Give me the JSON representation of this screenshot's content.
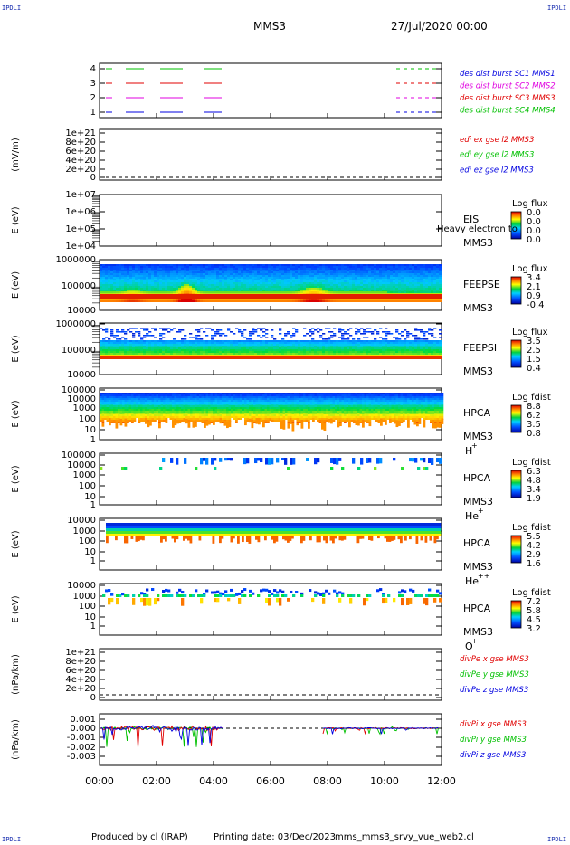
{
  "corners": {
    "tl": "IPDLI",
    "tr": "IPDLI",
    "bl": "IPDLI",
    "br": "IPDLI"
  },
  "header": {
    "mission": "MMS3",
    "date": "27/Jul/2020 00:00"
  },
  "footer": {
    "produced": "Produced by cl (IRAP)",
    "printed": "Printing date: 03/Dec/2023",
    "script": "mms_mms3_srvy_vue_web2.cl"
  },
  "xaxis": {
    "ticks": [
      "00:00",
      "02:00",
      "04:00",
      "06:00",
      "08:00",
      "10:00",
      "12:00"
    ]
  },
  "colors": {
    "blue": "#0000e0",
    "red": "#e00000",
    "green": "#00c000",
    "magenta": "#e000e0"
  },
  "chart_data": [
    {
      "type": "line",
      "id": "burst",
      "yticks": [
        "4",
        "3",
        "2",
        "1"
      ],
      "legend": [
        {
          "text": "des dist burst SC1 MMS1",
          "color": "#0000e0"
        },
        {
          "text": "des dist burst SC2 MMS2",
          "color": "#e000e0"
        },
        {
          "text": "des dist burst SC3 MMS3",
          "color": "#e00000"
        },
        {
          "text": "des dist burst SC4 MMS4",
          "color": "#00c000"
        }
      ]
    },
    {
      "type": "line",
      "id": "edi",
      "ylabel": "(mV/m)",
      "yticks": [
        "1e+21",
        "8e+20",
        "6e+20",
        "4e+20",
        "2e+20",
        "0"
      ],
      "legend": [
        {
          "text": "edi ex gse l2 MMS3",
          "color": "#e00000"
        },
        {
          "text": "edi ey gse l2 MMS3",
          "color": "#00c000"
        },
        {
          "text": "edi ez gse l2 MMS3",
          "color": "#0000e0"
        }
      ]
    },
    {
      "type": "heatmap",
      "id": "eis",
      "ylabel": "E (eV)",
      "yticks": [
        "1e+07",
        "1e+06",
        "1e+05",
        "1e+04"
      ],
      "labels": [
        "EIS",
        "MMS3"
      ],
      "overlay": "Heavy electron to",
      "cb_title": "Log flux",
      "cb_ticks": [
        "0.0",
        "0.0",
        "0.0",
        "0.0"
      ]
    },
    {
      "type": "heatmap",
      "id": "feepse",
      "ylabel": "E (eV)",
      "yticks": [
        "1000000",
        "100000",
        "10000"
      ],
      "labels": [
        "FEEPSE",
        "MMS3"
      ],
      "cb_title": "Log flux",
      "cb_ticks": [
        "3.4",
        "2.1",
        "0.9",
        "-0.4"
      ]
    },
    {
      "type": "heatmap",
      "id": "feepsi",
      "ylabel": "E (eV)",
      "yticks": [
        "1000000",
        "100000",
        "10000"
      ],
      "labels": [
        "FEEPSI",
        "MMS3"
      ],
      "cb_title": "Log flux",
      "cb_ticks": [
        "3.5",
        "2.5",
        "1.5",
        "0.4"
      ]
    },
    {
      "type": "heatmap",
      "id": "hpca_h",
      "ylabel": "E (eV)",
      "yticks": [
        "100000",
        "10000",
        "1000",
        "100",
        "10",
        "1"
      ],
      "labels": [
        "HPCA",
        "MMS3"
      ],
      "species": "H",
      "sup": "+",
      "cb_title": "Log fdist",
      "cb_ticks": [
        "8.8",
        "6.2",
        "3.5",
        "0.8"
      ]
    },
    {
      "type": "heatmap",
      "id": "hpca_he",
      "ylabel": "E (eV)",
      "yticks": [
        "100000",
        "10000",
        "1000",
        "100",
        "10",
        "1"
      ],
      "labels": [
        "HPCA",
        "MMS3"
      ],
      "species": "He",
      "sup": "+",
      "cb_title": "Log fdist",
      "cb_ticks": [
        "6.3",
        "4.8",
        "3.4",
        "1.9"
      ]
    },
    {
      "type": "heatmap",
      "id": "hpca_he2",
      "ylabel": "E (eV)",
      "yticks": [
        "10000",
        "1000",
        "100",
        "10",
        "1"
      ],
      "labels": [
        "HPCA",
        "MMS3"
      ],
      "species": "He",
      "sup": "++",
      "cb_title": "Log fdist",
      "cb_ticks": [
        "5.5",
        "4.2",
        "2.9",
        "1.6"
      ]
    },
    {
      "type": "heatmap",
      "id": "hpca_o",
      "ylabel": "E (eV)",
      "yticks": [
        "10000",
        "1000",
        "100",
        "10",
        "1"
      ],
      "labels": [
        "HPCA",
        "MMS3"
      ],
      "species": "O",
      "sup": "+",
      "cb_title": "Log fdist",
      "cb_ticks": [
        "7.2",
        "5.8",
        "4.5",
        "3.2"
      ]
    },
    {
      "type": "line",
      "id": "divpe",
      "ylabel": "(nPa/km)",
      "yticks": [
        "1e+21",
        "8e+20",
        "6e+20",
        "4e+20",
        "2e+20",
        "0"
      ],
      "legend": [
        {
          "text": "divPe x gse MMS3",
          "color": "#e00000"
        },
        {
          "text": "divPe y gse MMS3",
          "color": "#00c000"
        },
        {
          "text": "divPe z gse MMS3",
          "color": "#0000e0"
        }
      ]
    },
    {
      "type": "line",
      "id": "divpi",
      "ylabel": "(nPa/km)",
      "yticks": [
        "0.001",
        "0.000",
        "-0.001",
        "-0.002",
        "-0.003"
      ],
      "legend": [
        {
          "text": "divPi x gse MMS3",
          "color": "#e00000"
        },
        {
          "text": "divPi y gse MMS3",
          "color": "#00c000"
        },
        {
          "text": "divPi z gse MMS3",
          "color": "#0000e0"
        }
      ]
    }
  ]
}
